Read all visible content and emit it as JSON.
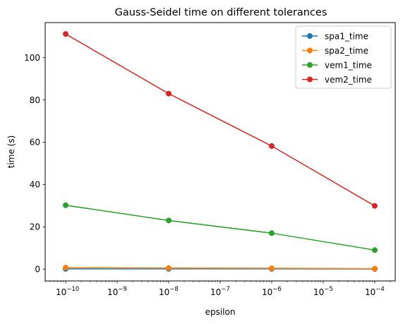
{
  "chart_data": {
    "type": "line",
    "title": "Gauss-Seidel time on different tolerances",
    "xlabel": "epsilon",
    "ylabel": "time (s)",
    "xscale": "log",
    "x": [
      1e-10,
      1e-08,
      1e-06,
      0.0001
    ],
    "xlim": [
      4e-11,
      0.00025
    ],
    "ylim": [
      -5.6,
      116.6
    ],
    "y_ticks": [
      0,
      20,
      40,
      60,
      80,
      100
    ],
    "x_major_ticks": [
      {
        "value": 1e-10,
        "base": "10",
        "exp": "−10"
      },
      {
        "value": 1e-09,
        "base": "10",
        "exp": "−9"
      },
      {
        "value": 1e-08,
        "base": "10",
        "exp": "−8"
      },
      {
        "value": 1e-07,
        "base": "10",
        "exp": "−7"
      },
      {
        "value": 1e-06,
        "base": "10",
        "exp": "−6"
      },
      {
        "value": 1e-05,
        "base": "10",
        "exp": "−5"
      },
      {
        "value": 0.0001,
        "base": "10",
        "exp": "−4"
      }
    ],
    "grid": false,
    "legend_position": "top-right",
    "series": [
      {
        "name": "spa1_time",
        "color": "#1f77b4",
        "values": [
          0.1,
          0.1,
          0.1,
          0.05
        ]
      },
      {
        "name": "spa2_time",
        "color": "#ff7f0e",
        "values": [
          0.7,
          0.5,
          0.4,
          0.2
        ]
      },
      {
        "name": "vem1_time",
        "color": "#2ca02c",
        "values": [
          30.2,
          23.0,
          17.0,
          9.0
        ]
      },
      {
        "name": "vem2_time",
        "color": "#d62728",
        "values": [
          111.2,
          83.0,
          58.2,
          29.9
        ]
      }
    ]
  }
}
